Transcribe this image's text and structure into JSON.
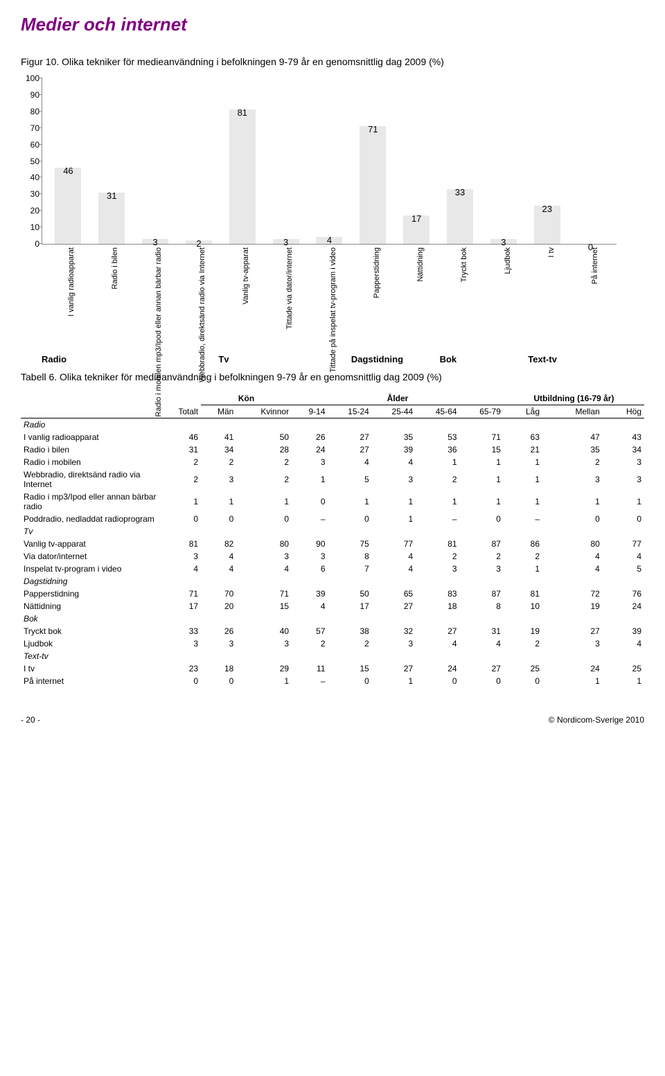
{
  "page_title": "Medier och internet",
  "figure": {
    "caption": "Figur 10. Olika tekniker för medieanvändning i befolkningen 9-79 år en genomsnittlig dag 2009 (%)",
    "ylim": [
      0,
      100
    ],
    "ytick_step": 10,
    "bar_color": "#e8e8e8",
    "bars": [
      {
        "label": "I vanlig radioapparat",
        "value": 46
      },
      {
        "label": "Radio i bilen",
        "value": 31
      },
      {
        "label": "Radio i mobilen mp3/Ipod eller annan bärbar radio",
        "value": 3
      },
      {
        "label": "Webbradio, direktsänd radio via Internet",
        "value": 2
      },
      {
        "label": "Vanlig tv-apparat",
        "value": 81
      },
      {
        "label": "Tittade via dator/internet",
        "value": 3
      },
      {
        "label": "Tittade på inspelat tv-program i video",
        "value": 4
      },
      {
        "label": "Papperstidning",
        "value": 71
      },
      {
        "label": "Nättidning",
        "value": 17
      },
      {
        "label": "Tryckt bok",
        "value": 33
      },
      {
        "label": "Ljudbok",
        "value": 3
      },
      {
        "label": "I tv",
        "value": 23
      },
      {
        "label": "På internet",
        "value": 0
      }
    ],
    "categories": [
      {
        "label": "Radio",
        "span": 4
      },
      {
        "label": "Tv",
        "span": 3
      },
      {
        "label": "Dagstidning",
        "span": 2
      },
      {
        "label": "Bok",
        "span": 2
      },
      {
        "label": "Text-tv",
        "span": 2
      }
    ]
  },
  "table": {
    "caption": "Tabell 6. Olika tekniker för medieanvändning i befolkningen 9-79 år en genomsnittlig dag 2009 (%)",
    "supercols": [
      {
        "label": "",
        "span": 1
      },
      {
        "label": "",
        "span": 1
      },
      {
        "label": "Kön",
        "span": 2
      },
      {
        "label": "Ålder",
        "span": 5
      },
      {
        "label": "Utbildning (16-79 år)",
        "span": 3
      }
    ],
    "cols": [
      "",
      "Totalt",
      "Män",
      "Kvinnor",
      "9-14",
      "15-24",
      "25-44",
      "45-64",
      "65-79",
      "Låg",
      "Mellan",
      "Hög"
    ],
    "sections": [
      {
        "label": "Radio",
        "rows": [
          [
            "I vanlig radioapparat",
            46,
            41,
            50,
            26,
            27,
            35,
            53,
            71,
            63,
            47,
            43
          ],
          [
            "Radio i bilen",
            31,
            34,
            28,
            24,
            27,
            39,
            36,
            15,
            21,
            35,
            34
          ],
          [
            "Radio i mobilen",
            2,
            2,
            2,
            3,
            4,
            4,
            1,
            1,
            1,
            2,
            3
          ],
          [
            "Webbradio, direktsänd radio via Internet",
            2,
            3,
            2,
            1,
            5,
            3,
            2,
            1,
            1,
            3,
            3
          ],
          [
            "Radio i mp3/Ipod eller annan bärbar radio",
            1,
            1,
            1,
            0,
            1,
            1,
            1,
            1,
            1,
            1,
            1
          ],
          [
            "Poddradio, nedladdat radioprogram",
            0,
            0,
            0,
            "–",
            0,
            1,
            "–",
            0,
            "–",
            0,
            0
          ]
        ]
      },
      {
        "label": "Tv",
        "rows": [
          [
            "Vanlig tv-apparat",
            81,
            82,
            80,
            90,
            75,
            77,
            81,
            87,
            86,
            80,
            77
          ],
          [
            "Via dator/internet",
            3,
            4,
            3,
            3,
            8,
            4,
            2,
            2,
            2,
            4,
            4
          ],
          [
            "Inspelat tv-program i video",
            4,
            4,
            4,
            6,
            7,
            4,
            3,
            3,
            1,
            4,
            5
          ]
        ]
      },
      {
        "label": "Dagstidning",
        "rows": [
          [
            "Papperstidning",
            71,
            70,
            71,
            39,
            50,
            65,
            83,
            87,
            81,
            72,
            76
          ],
          [
            "Nättidning",
            17,
            20,
            15,
            4,
            17,
            27,
            18,
            8,
            10,
            19,
            24
          ]
        ]
      },
      {
        "label": "Bok",
        "rows": [
          [
            "Tryckt bok",
            33,
            26,
            40,
            57,
            38,
            32,
            27,
            31,
            19,
            27,
            39
          ],
          [
            "Ljudbok",
            3,
            3,
            3,
            2,
            2,
            3,
            4,
            4,
            2,
            3,
            4
          ]
        ]
      },
      {
        "label": "Text-tv",
        "rows": [
          [
            "I tv",
            23,
            18,
            29,
            11,
            15,
            27,
            24,
            27,
            25,
            24,
            25
          ],
          [
            "På internet",
            0,
            0,
            1,
            "–",
            0,
            1,
            0,
            0,
            0,
            1,
            1
          ]
        ]
      }
    ]
  },
  "footer": {
    "page": "- 20 -",
    "copyright": "© Nordicom-Sverige 2010"
  }
}
